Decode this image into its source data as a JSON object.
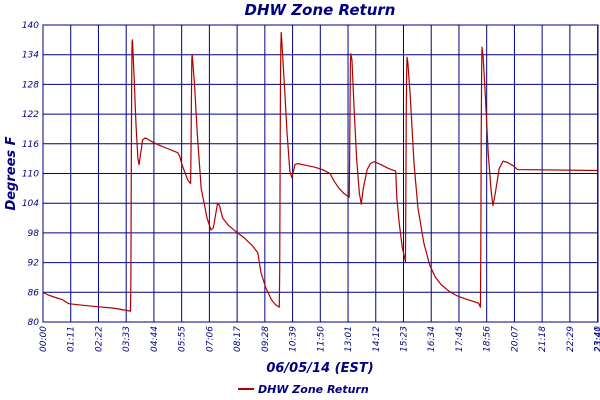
{
  "chart_data": {
    "type": "line",
    "title": "DHW Zone Return",
    "xlabel": "06/05/14 (EST)",
    "ylabel": "Degrees F",
    "ylim": [
      80,
      140
    ],
    "yticks": [
      "80",
      "86",
      "92",
      "98",
      "104",
      "110",
      "116",
      "122",
      "128",
      "134",
      "140"
    ],
    "xticks": [
      "00:00",
      "01:11",
      "02:22",
      "03:33",
      "04:44",
      "05:55",
      "07:06",
      "08:17",
      "09:28",
      "10:39",
      "11:50",
      "13:01",
      "14:12",
      "15:23",
      "16:34",
      "17:45",
      "18:56",
      "20:07",
      "21:18",
      "22:29",
      "23:40",
      "23:41"
    ],
    "xlim_minutes": [
      0,
      1421
    ],
    "grid": true,
    "legend_position": "bottom-center",
    "colors": {
      "line": "#b00000",
      "grid": "#000080",
      "text": "#000080"
    },
    "series": [
      {
        "name": "DHW Zone Return",
        "points": [
          [
            0,
            86.0
          ],
          [
            12,
            85.5
          ],
          [
            30,
            85.0
          ],
          [
            50,
            84.5
          ],
          [
            60,
            84.0
          ],
          [
            66,
            83.7
          ],
          [
            100,
            83.4
          ],
          [
            140,
            83.1
          ],
          [
            180,
            82.8
          ],
          [
            210,
            82.4
          ],
          [
            224,
            82.2
          ],
          [
            225,
            88.0
          ],
          [
            226,
            110.0
          ],
          [
            227,
            128.0
          ],
          [
            228,
            136.5
          ],
          [
            229,
            137.0
          ],
          [
            233,
            130.0
          ],
          [
            238,
            120.0
          ],
          [
            243,
            113.0
          ],
          [
            246,
            111.8
          ],
          [
            250,
            114.0
          ],
          [
            255,
            116.8
          ],
          [
            262,
            117.2
          ],
          [
            275,
            116.6
          ],
          [
            295,
            115.8
          ],
          [
            320,
            115.0
          ],
          [
            345,
            114.2
          ],
          [
            350,
            113.5
          ],
          [
            355,
            112.0
          ],
          [
            362,
            110.5
          ],
          [
            370,
            108.8
          ],
          [
            375,
            108.2
          ],
          [
            378,
            108.0
          ],
          [
            379,
            115.0
          ],
          [
            380,
            125.0
          ],
          [
            381,
            133.0
          ],
          [
            382,
            134.0
          ],
          [
            388,
            128.0
          ],
          [
            395,
            118.0
          ],
          [
            405,
            107.0
          ],
          [
            420,
            101.0
          ],
          [
            430,
            98.6
          ],
          [
            436,
            99.0
          ],
          [
            447,
            104.0
          ],
          [
            452,
            103.5
          ],
          [
            460,
            101.0
          ],
          [
            475,
            99.5
          ],
          [
            495,
            98.2
          ],
          [
            515,
            97.0
          ],
          [
            535,
            95.5
          ],
          [
            550,
            94.0
          ],
          [
            558,
            90.0
          ],
          [
            570,
            87.0
          ],
          [
            585,
            84.5
          ],
          [
            595,
            83.5
          ],
          [
            605,
            83.0
          ],
          [
            606,
            90.0
          ],
          [
            607,
            110.0
          ],
          [
            608,
            128.0
          ],
          [
            609,
            136.0
          ],
          [
            610,
            138.5
          ],
          [
            612,
            136.0
          ],
          [
            618,
            128.0
          ],
          [
            625,
            118.0
          ],
          [
            632,
            110.5
          ],
          [
            637,
            109.2
          ],
          [
            640,
            110.0
          ],
          [
            645,
            111.8
          ],
          [
            652,
            112.0
          ],
          [
            665,
            111.8
          ],
          [
            675,
            111.6
          ],
          [
            695,
            111.3
          ],
          [
            715,
            110.8
          ],
          [
            735,
            110.0
          ],
          [
            745,
            108.5
          ],
          [
            758,
            107.0
          ],
          [
            770,
            106.0
          ],
          [
            784,
            105.2
          ],
          [
            785,
            112.0
          ],
          [
            786,
            122.0
          ],
          [
            787,
            132.0
          ],
          [
            788,
            134.2
          ],
          [
            791,
            133.0
          ],
          [
            796,
            124.0
          ],
          [
            803,
            113.0
          ],
          [
            810,
            106.0
          ],
          [
            815,
            103.8
          ],
          [
            820,
            107.0
          ],
          [
            830,
            110.8
          ],
          [
            838,
            112.0
          ],
          [
            848,
            112.4
          ],
          [
            865,
            111.8
          ],
          [
            885,
            111.0
          ],
          [
            903,
            110.5
          ],
          [
            906,
            105.0
          ],
          [
            912,
            100.0
          ],
          [
            920,
            95.0
          ],
          [
            928,
            92.2
          ],
          [
            929,
            105.0
          ],
          [
            930,
            122.0
          ],
          [
            931,
            130.0
          ],
          [
            932,
            133.5
          ],
          [
            934,
            132.5
          ],
          [
            940,
            126.0
          ],
          [
            950,
            112.0
          ],
          [
            960,
            103.0
          ],
          [
            975,
            96.0
          ],
          [
            990,
            91.5
          ],
          [
            1005,
            89.0
          ],
          [
            1020,
            87.5
          ],
          [
            1040,
            86.2
          ],
          [
            1060,
            85.3
          ],
          [
            1080,
            84.7
          ],
          [
            1100,
            84.2
          ],
          [
            1115,
            83.8
          ],
          [
            1120,
            83.0
          ],
          [
            1121,
            95.0
          ],
          [
            1122,
            118.0
          ],
          [
            1123,
            130.0
          ],
          [
            1124,
            135.5
          ],
          [
            1127,
            133.5
          ],
          [
            1133,
            125.0
          ],
          [
            1140,
            114.0
          ],
          [
            1148,
            106.0
          ],
          [
            1152,
            103.5
          ],
          [
            1158,
            106.0
          ],
          [
            1168,
            111.0
          ],
          [
            1178,
            112.5
          ],
          [
            1190,
            112.2
          ],
          [
            1205,
            111.5
          ],
          [
            1215,
            110.8
          ],
          [
            1421,
            110.6
          ]
        ]
      }
    ]
  }
}
